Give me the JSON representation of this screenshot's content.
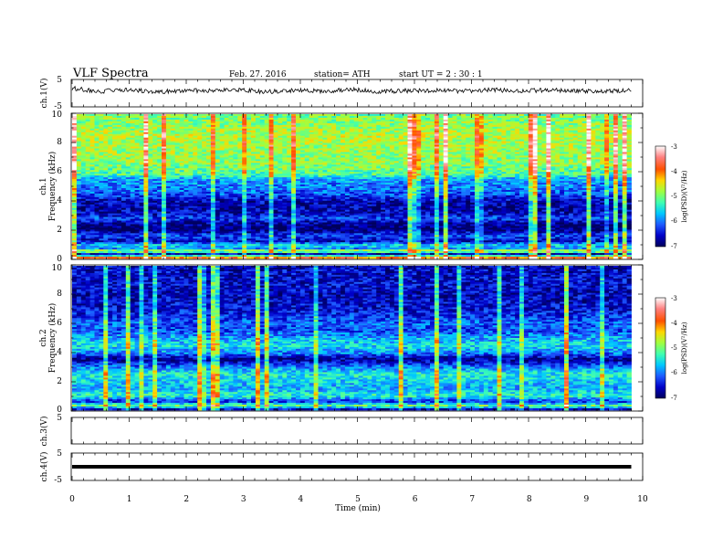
{
  "header": {
    "title": "VLF  Spectra",
    "date": "Feb. 27. 2016",
    "station": "station= ATH",
    "start": "start  UT  =   2  : 30 : 1"
  },
  "colorbar": {
    "label": "log(PSD)(V²/Hz)",
    "ticks": [
      "-3",
      "-4",
      "-5",
      "-6",
      "-7"
    ],
    "range": [
      -7,
      -3
    ],
    "colors": [
      "#00005a",
      "#0000c8",
      "#1e5aff",
      "#00c8ff",
      "#40ffb0",
      "#a0ff40",
      "#ffd700",
      "#ff5000",
      "#ff8080",
      "#ffffff"
    ]
  },
  "chart_data": [
    {
      "type": "line",
      "panel": "ch1-waveform",
      "ylabel": "ch.1(V)",
      "ylim": [
        -5,
        5
      ],
      "yticks": [
        "5",
        "-5"
      ],
      "xlim": [
        0,
        10
      ],
      "x_end": 9.8,
      "series": [
        {
          "values": [
            1.8,
            0.6,
            1.4,
            0.4,
            1.0,
            0.8,
            1.2,
            0.5,
            1.1,
            0.7,
            1.3,
            0.6,
            0.9,
            1.0,
            0.7,
            1.2,
            0.8,
            1.1,
            0.9,
            0.6,
            1.0
          ]
        }
      ]
    },
    {
      "type": "heatmap",
      "panel": "ch1-spectrogram",
      "ylabel_channel": "ch.1",
      "ylabel": "Frequency  (kHz)",
      "ylim": [
        0,
        10
      ],
      "yticks": [
        "0",
        "2",
        "4",
        "6",
        "8",
        "10"
      ],
      "xlim": [
        0,
        10
      ],
      "x_end": 9.8,
      "psd_profile": [
        {
          "f": 0.0,
          "v": -3.2
        },
        {
          "f": 0.3,
          "v": -6.8
        },
        {
          "f": 0.5,
          "v": -4.5
        },
        {
          "f": 0.7,
          "v": -6.0
        },
        {
          "f": 0.9,
          "v": -5.5
        },
        {
          "f": 1.2,
          "v": -6.6
        },
        {
          "f": 1.6,
          "v": -6.2
        },
        {
          "f": 2.0,
          "v": -6.9
        },
        {
          "f": 2.4,
          "v": -6.8
        },
        {
          "f": 2.8,
          "v": -6.2
        },
        {
          "f": 3.0,
          "v": -6.5
        },
        {
          "f": 3.5,
          "v": -6.7
        },
        {
          "f": 4.0,
          "v": -6.6
        },
        {
          "f": 4.5,
          "v": -6.1
        },
        {
          "f": 5.0,
          "v": -6.0
        },
        {
          "f": 5.5,
          "v": -5.8
        },
        {
          "f": 5.8,
          "v": -5.2
        },
        {
          "f": 6.5,
          "v": -4.9
        },
        {
          "f": 7.5,
          "v": -4.8
        },
        {
          "f": 8.5,
          "v": -4.7
        },
        {
          "f": 9.5,
          "v": -4.9
        },
        {
          "f": 10.0,
          "v": -5.0
        }
      ]
    },
    {
      "type": "heatmap",
      "panel": "ch2-spectrogram",
      "ylabel_channel": "ch.2",
      "ylabel": "Frequency  (kHz)",
      "ylim": [
        0,
        10
      ],
      "yticks": [
        "0",
        "2",
        "4",
        "6",
        "8",
        "10"
      ],
      "xlim": [
        0,
        10
      ],
      "x_end": 9.8,
      "psd_profile": [
        {
          "f": 0.0,
          "v": -6.9
        },
        {
          "f": 0.3,
          "v": -5.0
        },
        {
          "f": 0.6,
          "v": -6.4
        },
        {
          "f": 1.0,
          "v": -5.3
        },
        {
          "f": 1.5,
          "v": -5.8
        },
        {
          "f": 2.0,
          "v": -5.6
        },
        {
          "f": 2.5,
          "v": -5.4
        },
        {
          "f": 3.0,
          "v": -6.0
        },
        {
          "f": 3.5,
          "v": -6.8
        },
        {
          "f": 4.0,
          "v": -5.9
        },
        {
          "f": 4.5,
          "v": -5.5
        },
        {
          "f": 5.0,
          "v": -5.8
        },
        {
          "f": 5.5,
          "v": -6.2
        },
        {
          "f": 6.0,
          "v": -6.1
        },
        {
          "f": 7.0,
          "v": -6.5
        },
        {
          "f": 8.0,
          "v": -6.6
        },
        {
          "f": 9.0,
          "v": -6.5
        },
        {
          "f": 10.0,
          "v": -6.6
        }
      ]
    },
    {
      "type": "line",
      "panel": "ch3-waveform",
      "ylabel": "ch.3(V)",
      "ylim": [
        -5,
        5
      ],
      "yticks": [
        "5"
      ],
      "xlim": [
        0,
        10
      ],
      "x_end": 9.8,
      "series": [
        {
          "values": []
        }
      ]
    },
    {
      "type": "line",
      "panel": "ch4-waveform",
      "ylabel": "ch.4(V)",
      "ylim": [
        -5,
        5
      ],
      "yticks": [
        "5",
        "-5"
      ],
      "xlim": [
        0,
        10
      ],
      "x_end": 9.8,
      "series": [
        {
          "values": [
            0,
            0
          ]
        }
      ]
    }
  ],
  "xaxis": {
    "label": "Time  (min)",
    "ticks": [
      "0",
      "1",
      "2",
      "3",
      "4",
      "5",
      "6",
      "7",
      "8",
      "9",
      "10"
    ]
  }
}
